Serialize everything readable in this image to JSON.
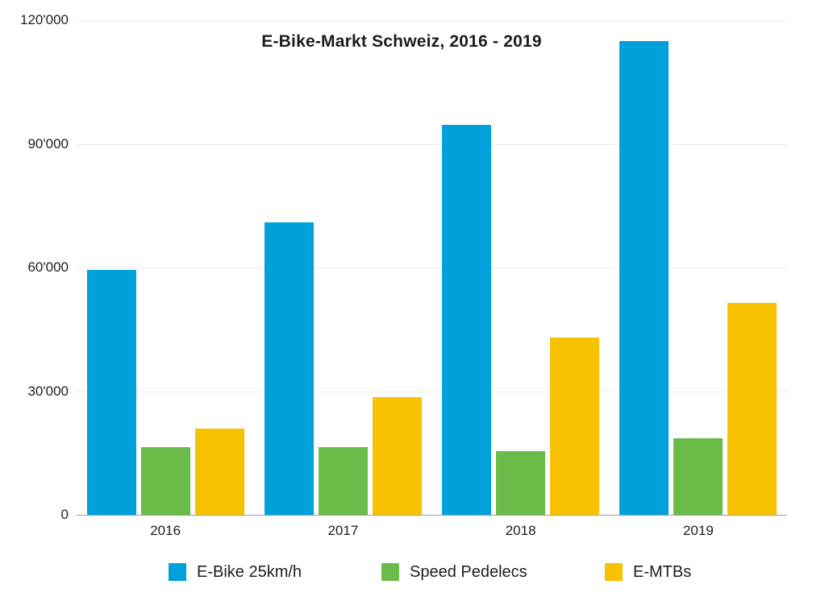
{
  "chart_data": {
    "type": "bar",
    "title": "E-Bike-Markt Schweiz, 2016 - 2019",
    "categories": [
      "2016",
      "2017",
      "2018",
      "2019"
    ],
    "series": [
      {
        "name": "E-Bike 25km/h",
        "color": "#00A1DB",
        "values": [
          59500,
          71000,
          94500,
          115000
        ]
      },
      {
        "name": "Speed Pedelecs",
        "color": "#6ABB47",
        "values": [
          16500,
          16500,
          15500,
          18500
        ]
      },
      {
        "name": "E-MTBs",
        "color": "#F8C200",
        "values": [
          21000,
          28500,
          43000,
          51500
        ]
      }
    ],
    "xlabel": "",
    "ylabel": "",
    "ylim": [
      0,
      120000
    ],
    "yticks": [
      0,
      30000,
      60000,
      90000,
      120000
    ],
    "ytick_labels": [
      "0",
      "30'000",
      "60'000",
      "90'000",
      "120'000"
    ],
    "grid": "horizontal-dotted",
    "bar_mode": "grouped",
    "legend_position": "bottom"
  },
  "style": {
    "text_color": "#1d1d1b",
    "gridline_color": "#d4d4d4",
    "axis_line_color": "#9e9e9e",
    "background": "#ffffff"
  }
}
